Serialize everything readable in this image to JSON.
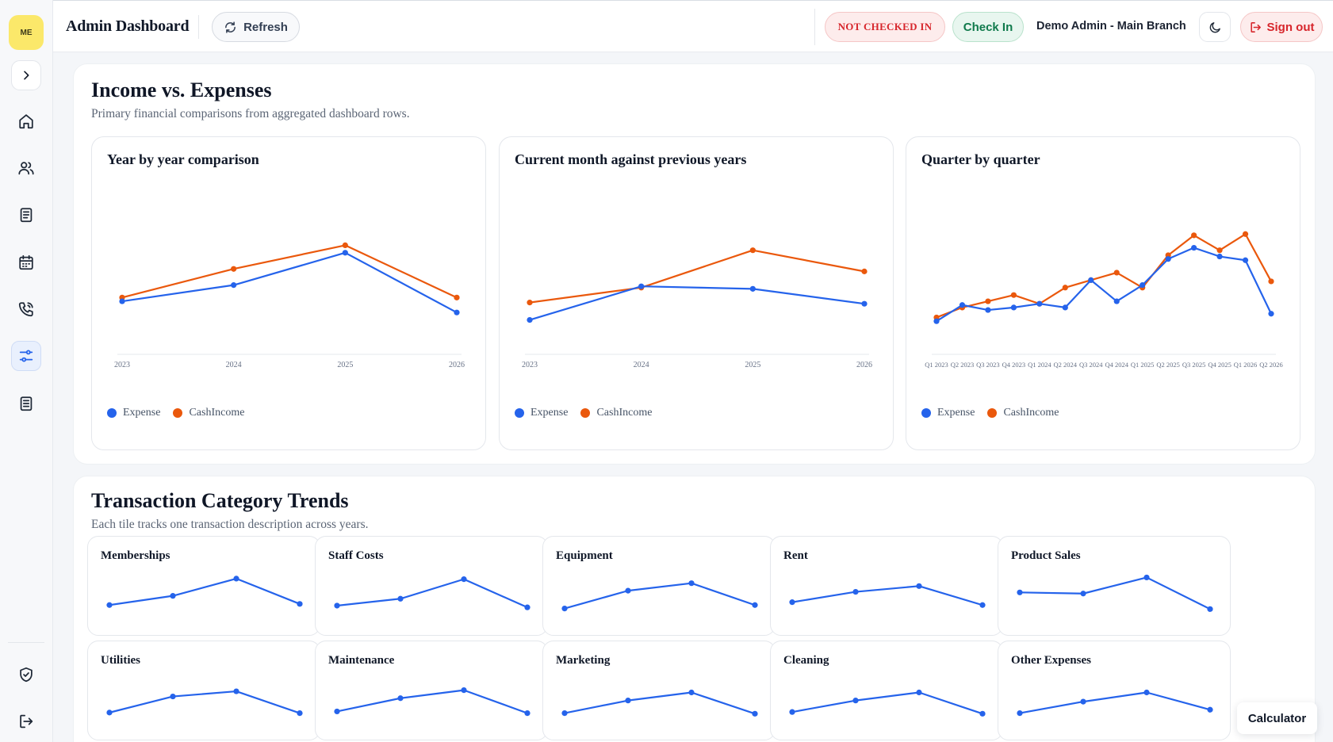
{
  "app": {
    "logo_text": "ME",
    "title": "Admin Dashboard"
  },
  "header": {
    "refresh_label": "Refresh",
    "status_badge": "NOT CHECKED IN",
    "check_in_label": "Check In",
    "user": "Demo Admin - Main Branch",
    "sign_out_label": "Sign out"
  },
  "sidebar": {
    "items": [
      {
        "icon": "home-icon"
      },
      {
        "icon": "users-icon"
      },
      {
        "icon": "clipboard-icon"
      },
      {
        "icon": "calendar-icon"
      },
      {
        "icon": "phone-icon"
      },
      {
        "icon": "sliders-icon",
        "active": true
      },
      {
        "icon": "document-icon"
      }
    ],
    "bottom": [
      {
        "icon": "shield-icon"
      },
      {
        "icon": "logout-icon"
      }
    ]
  },
  "colors": {
    "expense": "#2563eb",
    "cash_income": "#ea580c",
    "accent": "#2563eb"
  },
  "income_section": {
    "title": "Income vs. Expenses",
    "subtitle": "Primary financial comparisons from aggregated dashboard rows.",
    "legend": {
      "expense": "Expense",
      "cash_income": "CashIncome"
    }
  },
  "trends_section": {
    "title": "Transaction Category Trends",
    "subtitle": "Each tile tracks one transaction description across years."
  },
  "calculator_label": "Calculator",
  "chart_data": [
    {
      "type": "line",
      "title": "Year by year comparison",
      "x": [
        "2023",
        "2024",
        "2025",
        "2026"
      ],
      "series": [
        {
          "name": "Expense",
          "values": [
            35,
            48,
            74,
            26
          ]
        },
        {
          "name": "CashIncome",
          "values": [
            38,
            61,
            80,
            38
          ]
        }
      ],
      "ylim": [
        0,
        100
      ],
      "grid": false,
      "legend": "bottom-left"
    },
    {
      "type": "line",
      "title": "Current month against previous years",
      "x": [
        "2023",
        "2024",
        "2025",
        "2026"
      ],
      "series": [
        {
          "name": "Expense",
          "values": [
            20,
            47,
            45,
            33
          ]
        },
        {
          "name": "CashIncome",
          "values": [
            34,
            46,
            76,
            59
          ]
        }
      ],
      "ylim": [
        0,
        100
      ],
      "grid": false,
      "legend": "bottom-left"
    },
    {
      "type": "line",
      "title": "Quarter by quarter",
      "x": [
        "Q1 2023",
        "Q2 2023",
        "Q3 2023",
        "Q4 2023",
        "Q1 2024",
        "Q2 2024",
        "Q3 2024",
        "Q4 2024",
        "Q1 2025",
        "Q2 2025",
        "Q3 2025",
        "Q4 2025",
        "Q1 2026",
        "Q2 2026"
      ],
      "x_tick_labels": [
        "Q1 2023",
        "Q2 2023",
        "Q3 2023",
        "Q4 2023",
        "Q1 2024",
        "Q2 2024",
        "Q3 2024",
        "Q4 2024",
        "Q1 2025",
        "Q2 2025",
        "Q3 2025",
        "Q4 2025",
        "Q1 2026",
        "Q2 2026"
      ],
      "series": [
        {
          "name": "Expense",
          "values": [
            19,
            32,
            28,
            30,
            33,
            30,
            52,
            35,
            48,
            69,
            78,
            71,
            68,
            25
          ]
        },
        {
          "name": "CashIncome",
          "values": [
            22,
            30,
            35,
            40,
            33,
            46,
            52,
            58,
            46,
            72,
            88,
            76,
            89,
            51
          ]
        }
      ],
      "ylim": [
        0,
        100
      ],
      "grid": false,
      "legend": "bottom-left"
    }
  ],
  "category_trends": [
    {
      "name": "Memberships",
      "values": [
        30,
        46,
        76,
        32
      ]
    },
    {
      "name": "Staff Costs",
      "values": [
        29,
        41,
        75,
        26
      ]
    },
    {
      "name": "Equipment",
      "values": [
        24,
        55,
        68,
        30
      ]
    },
    {
      "name": "Rent",
      "values": [
        35,
        53,
        63,
        30
      ]
    },
    {
      "name": "Product Sales",
      "values": [
        52,
        50,
        78,
        23
      ]
    },
    {
      "name": "Utilities",
      "values": [
        25,
        53,
        62,
        24
      ]
    },
    {
      "name": "Maintenance",
      "values": [
        27,
        50,
        64,
        24
      ]
    },
    {
      "name": "Marketing",
      "values": [
        24,
        46,
        60,
        23
      ]
    },
    {
      "name": "Cleaning",
      "values": [
        26,
        46,
        60,
        23
      ]
    },
    {
      "name": "Other Expenses",
      "values": [
        24,
        44,
        60,
        30
      ]
    }
  ]
}
